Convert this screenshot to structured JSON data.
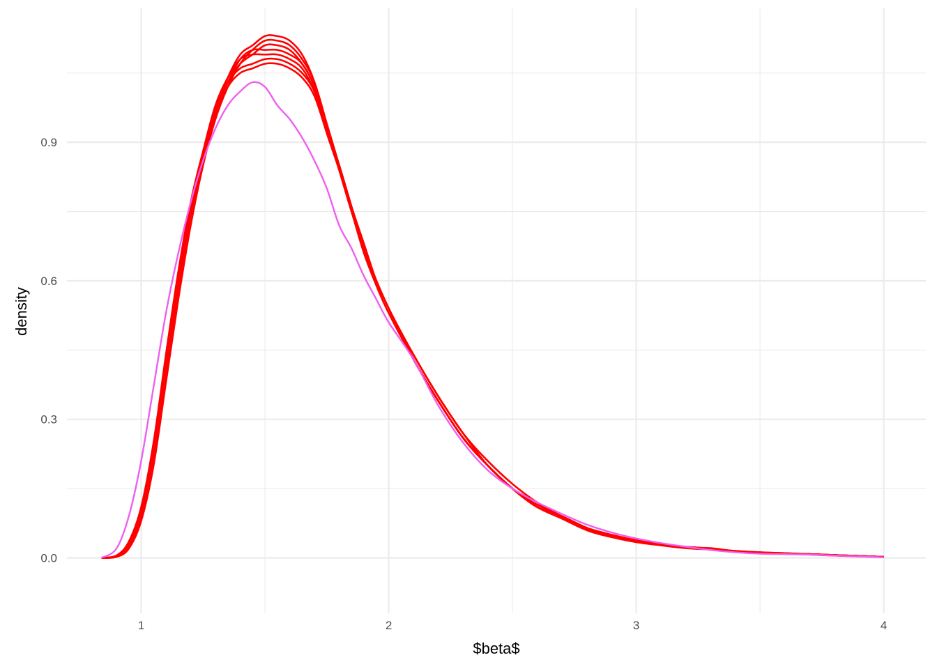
{
  "chart_data": {
    "type": "line",
    "title": "",
    "xlabel": "$beta$",
    "ylabel": "density",
    "xlim": [
      0.7,
      4.17
    ],
    "ylim": [
      -0.12,
      1.19
    ],
    "x_ticks": [
      1,
      2,
      3,
      4
    ],
    "x_tick_labels": [
      "1",
      "2",
      "3",
      "4"
    ],
    "y_ticks": [
      0.0,
      0.3,
      0.6,
      0.9
    ],
    "y_tick_labels": [
      "0.0",
      "0.3",
      "0.6",
      "0.9"
    ],
    "grid": true,
    "legend": "none",
    "colors": {
      "replicates": "#ff0000",
      "observed": "#ee5ff0",
      "grid": "#ebebeb"
    },
    "x": [
      0.84,
      0.9,
      0.95,
      1.0,
      1.05,
      1.1,
      1.15,
      1.2,
      1.25,
      1.3,
      1.35,
      1.4,
      1.45,
      1.5,
      1.55,
      1.6,
      1.65,
      1.7,
      1.75,
      1.8,
      1.85,
      1.9,
      1.95,
      2.0,
      2.1,
      2.2,
      2.3,
      2.4,
      2.5,
      2.6,
      2.7,
      2.8,
      2.9,
      3.0,
      3.1,
      3.2,
      3.3,
      3.4,
      3.5,
      3.6,
      3.7,
      3.8,
      3.9,
      4.0
    ],
    "series": [
      {
        "group": "replicate",
        "values": [
          0.0,
          0.004,
          0.03,
          0.1,
          0.24,
          0.42,
          0.6,
          0.75,
          0.87,
          0.97,
          1.04,
          1.09,
          1.11,
          1.13,
          1.13,
          1.12,
          1.09,
          1.03,
          0.93,
          0.84,
          0.75,
          0.66,
          0.59,
          0.53,
          0.43,
          0.34,
          0.26,
          0.2,
          0.15,
          0.11,
          0.09,
          0.06,
          0.045,
          0.035,
          0.028,
          0.022,
          0.02,
          0.014,
          0.011,
          0.009,
          0.008,
          0.006,
          0.004,
          0.002
        ]
      },
      {
        "group": "replicate",
        "values": [
          0.0,
          0.003,
          0.025,
          0.09,
          0.22,
          0.4,
          0.58,
          0.74,
          0.86,
          0.96,
          1.03,
          1.07,
          1.09,
          1.11,
          1.11,
          1.1,
          1.07,
          1.02,
          0.93,
          0.84,
          0.75,
          0.67,
          0.6,
          0.54,
          0.44,
          0.35,
          0.27,
          0.2,
          0.15,
          0.115,
          0.09,
          0.065,
          0.05,
          0.038,
          0.03,
          0.024,
          0.02,
          0.015,
          0.012,
          0.01,
          0.008,
          0.006,
          0.004,
          0.002
        ]
      },
      {
        "group": "replicate",
        "values": [
          0.0,
          0.005,
          0.035,
          0.11,
          0.25,
          0.44,
          0.62,
          0.77,
          0.88,
          0.97,
          1.03,
          1.06,
          1.07,
          1.08,
          1.08,
          1.07,
          1.05,
          1.01,
          0.93,
          0.85,
          0.76,
          0.68,
          0.6,
          0.54,
          0.43,
          0.34,
          0.26,
          0.2,
          0.15,
          0.11,
          0.09,
          0.065,
          0.048,
          0.036,
          0.029,
          0.022,
          0.018,
          0.014,
          0.011,
          0.009,
          0.008,
          0.006,
          0.004,
          0.002
        ]
      },
      {
        "group": "replicate",
        "values": [
          0.0,
          0.002,
          0.02,
          0.08,
          0.2,
          0.38,
          0.56,
          0.72,
          0.85,
          0.95,
          1.02,
          1.07,
          1.1,
          1.12,
          1.12,
          1.11,
          1.08,
          1.03,
          0.94,
          0.85,
          0.76,
          0.67,
          0.6,
          0.54,
          0.44,
          0.35,
          0.27,
          0.21,
          0.16,
          0.12,
          0.09,
          0.065,
          0.05,
          0.038,
          0.03,
          0.024,
          0.02,
          0.015,
          0.012,
          0.01,
          0.008,
          0.006,
          0.004,
          0.002
        ]
      },
      {
        "group": "replicate",
        "values": [
          0.0,
          0.004,
          0.03,
          0.1,
          0.23,
          0.41,
          0.59,
          0.75,
          0.87,
          0.96,
          1.02,
          1.05,
          1.06,
          1.07,
          1.07,
          1.06,
          1.04,
          1.0,
          0.92,
          0.84,
          0.75,
          0.67,
          0.6,
          0.54,
          0.43,
          0.34,
          0.26,
          0.2,
          0.15,
          0.11,
          0.085,
          0.06,
          0.045,
          0.034,
          0.027,
          0.021,
          0.018,
          0.013,
          0.01,
          0.009,
          0.007,
          0.005,
          0.003,
          0.002
        ]
      },
      {
        "group": "replicate",
        "values": [
          0.0,
          0.003,
          0.028,
          0.095,
          0.23,
          0.41,
          0.59,
          0.75,
          0.87,
          0.97,
          1.03,
          1.08,
          1.1,
          1.1,
          1.1,
          1.09,
          1.07,
          1.02,
          0.93,
          0.85,
          0.76,
          0.67,
          0.6,
          0.54,
          0.43,
          0.34,
          0.26,
          0.2,
          0.15,
          0.11,
          0.09,
          0.065,
          0.048,
          0.036,
          0.028,
          0.022,
          0.019,
          0.014,
          0.011,
          0.009,
          0.008,
          0.006,
          0.004,
          0.002
        ]
      },
      {
        "group": "replicate",
        "values": [
          0.0,
          0.004,
          0.032,
          0.105,
          0.24,
          0.43,
          0.61,
          0.76,
          0.88,
          0.98,
          1.04,
          1.08,
          1.09,
          1.09,
          1.09,
          1.08,
          1.06,
          1.01,
          0.92,
          0.84,
          0.75,
          0.67,
          0.6,
          0.54,
          0.43,
          0.34,
          0.26,
          0.2,
          0.15,
          0.11,
          0.088,
          0.063,
          0.047,
          0.035,
          0.028,
          0.022,
          0.021,
          0.014,
          0.011,
          0.009,
          0.008,
          0.006,
          0.004,
          0.002
        ]
      },
      {
        "group": "observed",
        "values": [
          0.0,
          0.02,
          0.09,
          0.21,
          0.37,
          0.53,
          0.66,
          0.77,
          0.86,
          0.93,
          0.98,
          1.01,
          1.03,
          1.02,
          0.98,
          0.95,
          0.91,
          0.86,
          0.8,
          0.72,
          0.67,
          0.61,
          0.56,
          0.51,
          0.43,
          0.33,
          0.25,
          0.19,
          0.15,
          0.12,
          0.095,
          0.072,
          0.055,
          0.042,
          0.032,
          0.024,
          0.017,
          0.012,
          0.009,
          0.008,
          0.007,
          0.005,
          0.003,
          0.001
        ]
      }
    ]
  }
}
